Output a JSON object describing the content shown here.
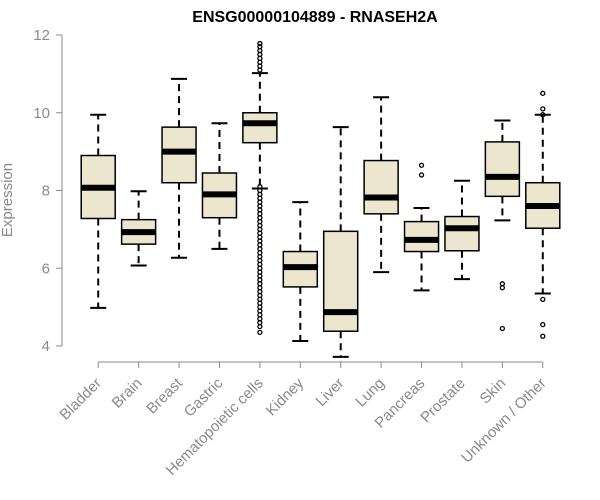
{
  "chart_data": {
    "type": "box",
    "title": "ENSG00000104889 - RNASEH2A",
    "xlabel": "",
    "ylabel": "Expression",
    "ylim": [
      3.6,
      12.1
    ],
    "yticks": [
      4,
      6,
      8,
      10,
      12
    ],
    "colors": {
      "box_fill": "#ede6cf",
      "box_stroke": "#000000",
      "axis": "#8a8a8a"
    },
    "categories": [
      "Bladder",
      "Brain",
      "Breast",
      "Gastric",
      "Hematopoietic cells",
      "Kidney",
      "Liver",
      "Lung",
      "Pancreas",
      "Prostate",
      "Skin",
      "Unknown / Other"
    ],
    "boxes": [
      {
        "category": "Bladder",
        "whisker_low": 4.98,
        "q1": 7.28,
        "median": 8.07,
        "q3": 8.9,
        "whisker_high": 9.95,
        "outliers": []
      },
      {
        "category": "Brain",
        "whisker_low": 6.07,
        "q1": 6.62,
        "median": 6.93,
        "q3": 7.25,
        "whisker_high": 7.98,
        "outliers": []
      },
      {
        "category": "Breast",
        "whisker_low": 6.27,
        "q1": 8.2,
        "median": 9.0,
        "q3": 9.63,
        "whisker_high": 10.87,
        "outliers": []
      },
      {
        "category": "Gastric",
        "whisker_low": 6.5,
        "q1": 7.3,
        "median": 7.9,
        "q3": 8.45,
        "whisker_high": 9.73,
        "outliers": []
      },
      {
        "category": "Hematopoietic cells",
        "whisker_low": 8.05,
        "q1": 9.23,
        "median": 9.73,
        "q3": 10.0,
        "whisker_high": 11.02,
        "outliers": [
          11.1,
          11.2,
          11.3,
          11.4,
          11.5,
          11.6,
          11.7,
          11.78,
          4.35,
          4.6,
          4.8,
          5.0,
          5.2,
          5.4,
          5.6,
          5.8,
          6.0,
          6.2,
          6.4,
          6.6,
          6.8,
          7.0,
          7.2,
          7.4,
          7.6,
          7.8,
          8.0,
          4.5,
          4.7,
          4.9,
          5.1,
          5.3,
          5.5,
          5.7,
          5.9,
          6.1,
          6.3,
          6.5,
          6.7,
          6.9,
          7.1,
          7.3,
          7.5,
          7.7,
          7.9,
          8.1
        ]
      },
      {
        "category": "Kidney",
        "whisker_low": 4.13,
        "q1": 5.52,
        "median": 6.03,
        "q3": 6.43,
        "whisker_high": 7.7,
        "outliers": []
      },
      {
        "category": "Liver",
        "whisker_low": 3.72,
        "q1": 4.38,
        "median": 4.87,
        "q3": 6.95,
        "whisker_high": 9.63,
        "outliers": []
      },
      {
        "category": "Lung",
        "whisker_low": 5.9,
        "q1": 7.4,
        "median": 7.82,
        "q3": 8.77,
        "whisker_high": 10.4,
        "outliers": []
      },
      {
        "category": "Pancreas",
        "whisker_low": 5.43,
        "q1": 6.43,
        "median": 6.73,
        "q3": 7.2,
        "whisker_high": 7.55,
        "outliers": [
          8.4,
          8.65
        ]
      },
      {
        "category": "Prostate",
        "whisker_low": 5.72,
        "q1": 6.45,
        "median": 7.03,
        "q3": 7.33,
        "whisker_high": 8.25,
        "outliers": []
      },
      {
        "category": "Skin",
        "whisker_low": 7.23,
        "q1": 7.85,
        "median": 8.35,
        "q3": 9.25,
        "whisker_high": 9.8,
        "outliers": [
          5.6,
          5.5,
          4.45
        ]
      },
      {
        "category": "Unknown / Other",
        "whisker_low": 5.35,
        "q1": 7.03,
        "median": 7.6,
        "q3": 8.2,
        "whisker_high": 9.95,
        "outliers": [
          10.5,
          10.1,
          9.95,
          5.2,
          4.55,
          4.25
        ]
      }
    ]
  }
}
